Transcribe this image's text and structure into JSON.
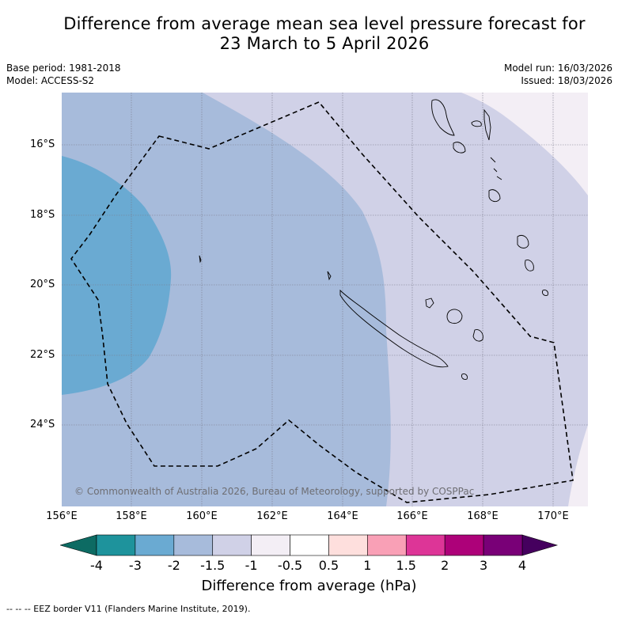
{
  "title_line1": "Difference from average mean sea level pressure forecast for",
  "title_line2": "23 March to 5 April 2026",
  "meta": {
    "base_period": "Base period: 1981-2018",
    "model": "Model: ACCESS-S2",
    "model_run": "Model run: 16/03/2026",
    "issued": "Issued: 18/03/2026"
  },
  "axes": {
    "lat_labels": [
      "16°S",
      "18°S",
      "20°S",
      "22°S",
      "24°S"
    ],
    "lon_labels": [
      "156°E",
      "158°E",
      "160°E",
      "162°E",
      "164°E",
      "166°E",
      "168°E",
      "170°E"
    ]
  },
  "map": {
    "copyright": "© Commonwealth of Australia 2026, Bureau of Meteorology, supported by COSPPac",
    "region": "New Caledonia",
    "anomaly_zones": [
      {
        "band": "-2 to -1.5 hPa",
        "area": "western half of map"
      },
      {
        "band": "-3 to -2 hPa",
        "area": "far west, 156°E–159°E, 16.5°S–23°S"
      },
      {
        "band": "-1.5 to -1 hPa",
        "area": "east of about 164°E"
      },
      {
        "band": "-1 to -0.5 hPa",
        "area": "north-east corner"
      }
    ]
  },
  "colorbar": {
    "title": "Difference from average (hPa)",
    "ticks": [
      "-4",
      "-3",
      "-2",
      "-1.5",
      "-1",
      "-0.5",
      "0.5",
      "1",
      "1.5",
      "2",
      "3",
      "4"
    ],
    "under_color": "#0d6b63",
    "over_color": "#45005e",
    "colors": [
      "#1e939c",
      "#6aaad2",
      "#a7bbdb",
      "#d0d1e7",
      "#f3eef5",
      "#ffffff",
      "#fedfdd",
      "#f9a0b6",
      "#dd3597",
      "#ad0179",
      "#790077"
    ]
  },
  "legend_note": "--  --  -- EEZ border V11 (Flanders Marine Institute, 2019)."
}
